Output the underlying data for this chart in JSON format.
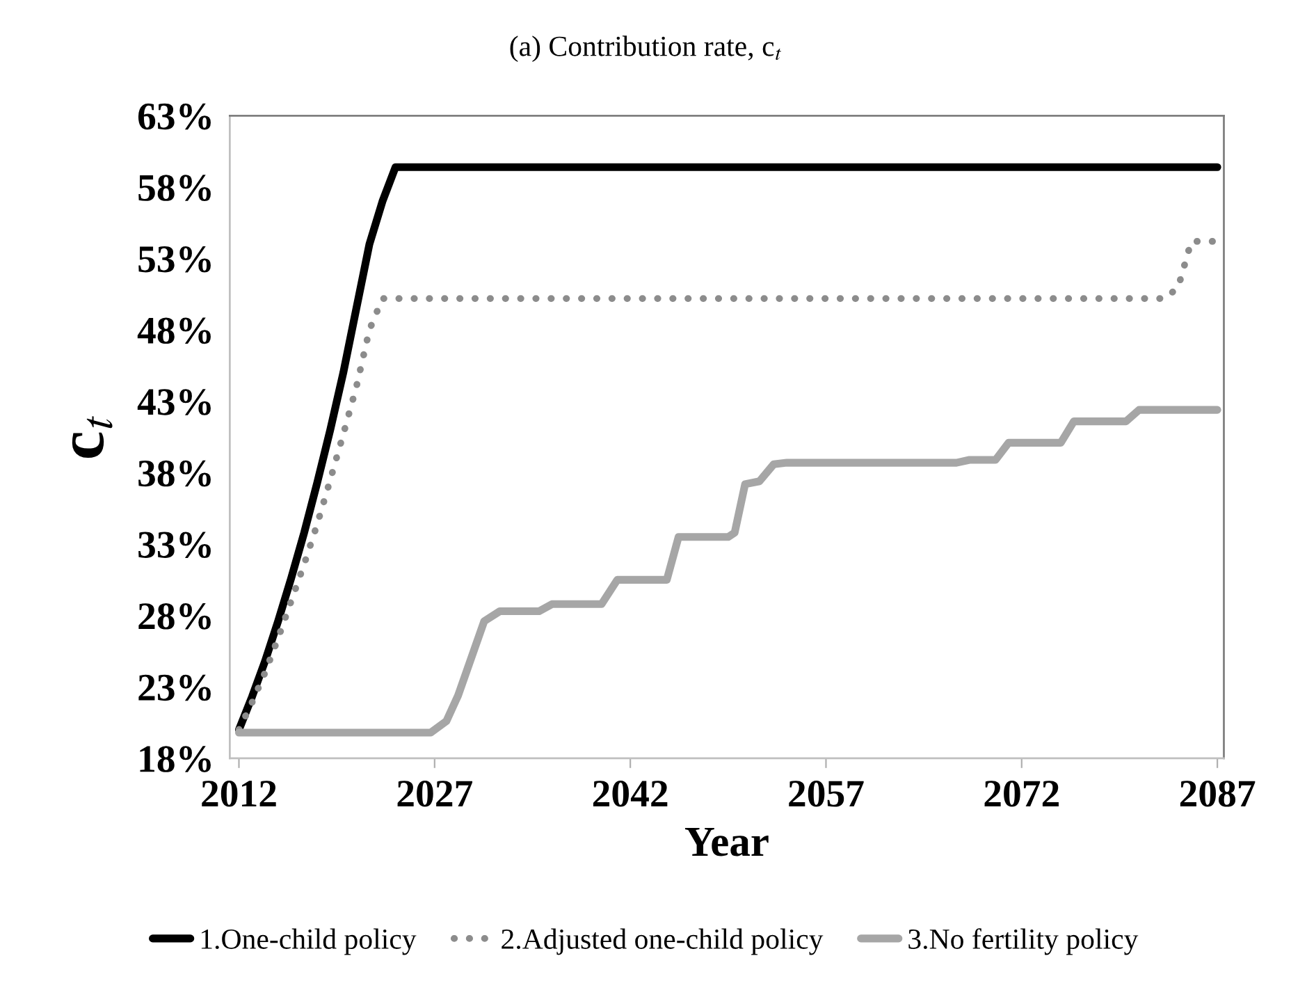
{
  "chart_data": {
    "type": "line",
    "title": "(a) Contribution rate, c$_{t}$",
    "xlabel": "Year",
    "ylabel": "c$_{t}$",
    "xlim": [
      2011.3,
      2087.5
    ],
    "xticks": [
      2012,
      2027,
      2042,
      2057,
      2072,
      2087
    ],
    "ylim": [
      18,
      63
    ],
    "yticks": [
      {
        "value": 18,
        "label": "18%"
      },
      {
        "value": 23,
        "label": "23%"
      },
      {
        "value": 28,
        "label": "28%"
      },
      {
        "value": 33,
        "label": "33%"
      },
      {
        "value": 38,
        "label": "38%"
      },
      {
        "value": 43,
        "label": "43%"
      },
      {
        "value": 48,
        "label": "48%"
      },
      {
        "value": 53,
        "label": "53%"
      },
      {
        "value": 58,
        "label": "58%"
      },
      {
        "value": 63,
        "label": "63%"
      }
    ],
    "grid": false,
    "legend": "bottom",
    "marker": "none",
    "series": [
      {
        "name": "1.One-child policy",
        "color": "#000000",
        "line_style": "solid",
        "x": [
          2012,
          2013,
          2014,
          2015,
          2016,
          2017,
          2018,
          2019,
          2020,
          2021,
          2022,
          2023,
          2024,
          2087
        ],
        "values": [
          20,
          22.3,
          24.8,
          27.6,
          30.6,
          33.8,
          37.3,
          41.0,
          45.0,
          49.5,
          54.0,
          57.0,
          59.4,
          59.4
        ]
      },
      {
        "name": "2.Adjusted one-child policy",
        "color": "#8c8c8c",
        "line_style": "dotted",
        "x": [
          2012,
          2013,
          2014,
          2015,
          2016,
          2017,
          2018,
          2019,
          2020,
          2021,
          2022,
          2023,
          2083,
          2084,
          2085,
          2087
        ],
        "values": [
          20,
          21.9,
          24.0,
          26.4,
          29.0,
          31.6,
          34.4,
          37.5,
          40.7,
          44.0,
          48.0,
          50.2,
          50.2,
          51.0,
          54.2,
          54.2
        ]
      },
      {
        "name": "3.No fertility policy",
        "color": "#a6a6a6",
        "line_style": "solid",
        "x": [
          2012,
          2026.7,
          2027.9,
          2028.8,
          2030.8,
          2032,
          2035,
          2036,
          2039.8,
          2041,
          2044.8,
          2045.7,
          2049.5,
          2050,
          2050.8,
          2051.9,
          2053,
          2054,
          2067,
          2068,
          2070,
          2071,
          2075,
          2076,
          2080,
          2081,
          2087
        ],
        "values": [
          19.8,
          19.8,
          20.6,
          22.4,
          27.6,
          28.3,
          28.3,
          28.8,
          28.8,
          30.5,
          30.5,
          33.5,
          33.5,
          33.8,
          37.2,
          37.4,
          38.6,
          38.7,
          38.7,
          38.9,
          38.9,
          40.1,
          40.1,
          41.6,
          41.6,
          42.4,
          42.4
        ]
      }
    ]
  }
}
